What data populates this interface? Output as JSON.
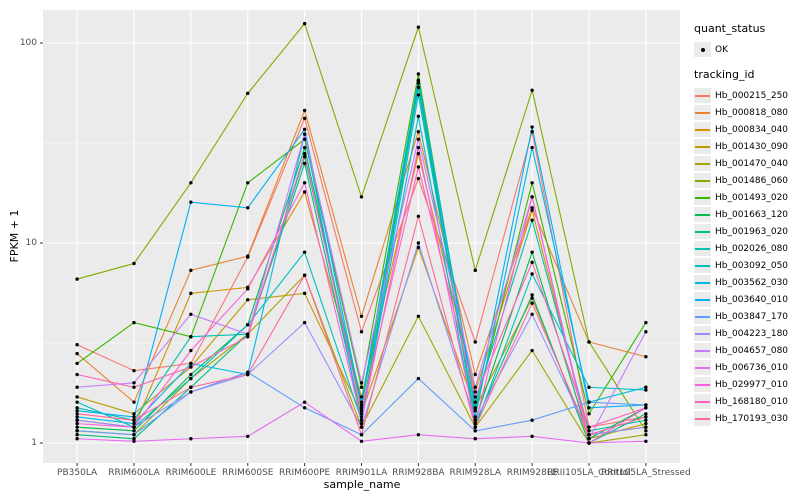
{
  "figure": {
    "panel_bg": "#EBEBEB",
    "grid_color": "#FFFFFF",
    "point_color": "#000000",
    "axis_text_color": "#4D4D4D"
  },
  "legend": {
    "quant_status_title": "quant_status",
    "ok_label": "OK",
    "tracking_title": "tracking_id"
  },
  "chart_data": {
    "type": "line",
    "xlabel": "sample_name",
    "ylabel": "FPKM + 1",
    "y_scale": "log10",
    "ylim": [
      1,
      146
    ],
    "y_major_ticks": [
      1,
      10,
      100
    ],
    "y_minor_ticks": [
      3.162,
      31.62
    ],
    "grid": true,
    "legend_position": "right",
    "point_legend": {
      "title": "quant_status",
      "items": [
        "OK"
      ]
    },
    "series_legend_title": "tracking_id",
    "categories": [
      "PB350LA",
      "RRIM600LA",
      "RRIM600LE",
      "RRIM600SE",
      "RRIM600PE",
      "RRIM901LA",
      "RRIM928BA",
      "RRIM928LA",
      "RRIM928LE",
      "RRII105LA_Control",
      "RRII105LA_Stressed"
    ],
    "series": [
      {
        "name": "Hb_000215_250",
        "color": "#F8766D",
        "values": [
          3.1,
          2.3,
          2.5,
          8.5,
          42,
          3.6,
          21,
          3.2,
          36,
          1.2,
          1.35
        ]
      },
      {
        "name": "Hb_000818_080",
        "color": "#EA8331",
        "values": [
          2.8,
          1.6,
          7.3,
          8.6,
          46,
          4.3,
          36,
          2.2,
          15,
          3.2,
          2.7
        ]
      },
      {
        "name": "Hb_000834_040",
        "color": "#D89000",
        "values": [
          1.3,
          1.2,
          5.6,
          6.0,
          18,
          1.7,
          28,
          1.8,
          14.6,
          1.1,
          1.2
        ]
      },
      {
        "name": "Hb_001430_090",
        "color": "#C09B00",
        "values": [
          1.7,
          1.4,
          2.4,
          5.2,
          5.6,
          1.4,
          9.5,
          1.5,
          5.3,
          1.05,
          1.25
        ]
      },
      {
        "name": "Hb_001470_040",
        "color": "#A3A500",
        "values": [
          1.15,
          1.1,
          2.1,
          3.5,
          6.9,
          1.2,
          4.3,
          1.2,
          2.9,
          1.0,
          1.1
        ]
      },
      {
        "name": "Hb_001486_060",
        "color": "#7CAE00",
        "values": [
          6.6,
          7.9,
          20,
          56,
          125,
          17,
          120,
          7.3,
          58,
          3.2,
          1.15
        ]
      },
      {
        "name": "Hb_001493_020",
        "color": "#39B600",
        "values": [
          2.5,
          4.0,
          3.4,
          20,
          33,
          1.9,
          70,
          1.45,
          20,
          1.4,
          4.0
        ]
      },
      {
        "name": "Hb_001663_120",
        "color": "#00BB4E",
        "values": [
          1.2,
          1.15,
          2.2,
          3.9,
          30,
          1.5,
          63,
          1.3,
          9.0,
          1.05,
          1.5
        ]
      },
      {
        "name": "Hb_001963_020",
        "color": "#00BF7D",
        "values": [
          1.1,
          1.05,
          1.9,
          3.5,
          25,
          1.35,
          60,
          1.25,
          5.5,
          1.0,
          1.4
        ]
      },
      {
        "name": "Hb_002026_080",
        "color": "#00C0AF",
        "values": [
          1.5,
          1.3,
          3.4,
          3.5,
          27,
          1.6,
          65,
          1.6,
          13,
          1.15,
          1.3
        ]
      },
      {
        "name": "Hb_003092_050",
        "color": "#00BFC4",
        "values": [
          1.6,
          1.2,
          2.1,
          3.9,
          9.0,
          1.3,
          43,
          1.2,
          7.0,
          1.9,
          1.84
        ]
      },
      {
        "name": "Hb_003562_030",
        "color": "#00B8E7",
        "values": [
          1.35,
          1.25,
          2.5,
          2.2,
          35,
          1.25,
          55,
          1.35,
          30,
          1.6,
          1.9
        ]
      },
      {
        "name": "Hb_003640_010",
        "color": "#00B0F6",
        "values": [
          1.45,
          1.35,
          16,
          15,
          37,
          1.55,
          65,
          1.5,
          38,
          1.5,
          1.55
        ]
      },
      {
        "name": "Hb_003847_170",
        "color": "#619CFF",
        "values": [
          1.15,
          1.1,
          1.8,
          2.26,
          1.5,
          1.1,
          2.1,
          1.15,
          1.3,
          1.6,
          1.55
        ]
      },
      {
        "name": "Hb_004223_180",
        "color": "#9590FF",
        "values": [
          1.3,
          1.2,
          1.8,
          2.2,
          4.0,
          1.2,
          10,
          1.3,
          4.4,
          1.1,
          1.2
        ]
      },
      {
        "name": "Hb_004657_080",
        "color": "#C77CFF",
        "values": [
          1.9,
          2.0,
          4.4,
          3.5,
          35,
          2.0,
          33,
          1.9,
          17,
          1.05,
          3.6
        ]
      },
      {
        "name": "Hb_006736_010",
        "color": "#E76BF3",
        "values": [
          1.05,
          1.02,
          1.05,
          1.08,
          1.6,
          1.02,
          1.1,
          1.05,
          1.08,
          1.0,
          1.02
        ]
      },
      {
        "name": "Hb_029977_010",
        "color": "#FA62DB",
        "values": [
          1.25,
          1.2,
          2.9,
          5.9,
          20,
          1.3,
          30,
          1.25,
          17,
          1.0,
          1.5
        ]
      },
      {
        "name": "Hb_168180_010",
        "color": "#FF62BC",
        "values": [
          2.2,
          1.9,
          2.4,
          3.4,
          28,
          1.45,
          24,
          1.7,
          8.0,
          1.2,
          1.5
        ]
      },
      {
        "name": "Hb_170193_030",
        "color": "#FF6A98",
        "values": [
          1.4,
          1.3,
          1.9,
          2.2,
          6.9,
          1.1,
          13.6,
          1.2,
          5.0,
          1.1,
          1.35
        ]
      }
    ]
  }
}
